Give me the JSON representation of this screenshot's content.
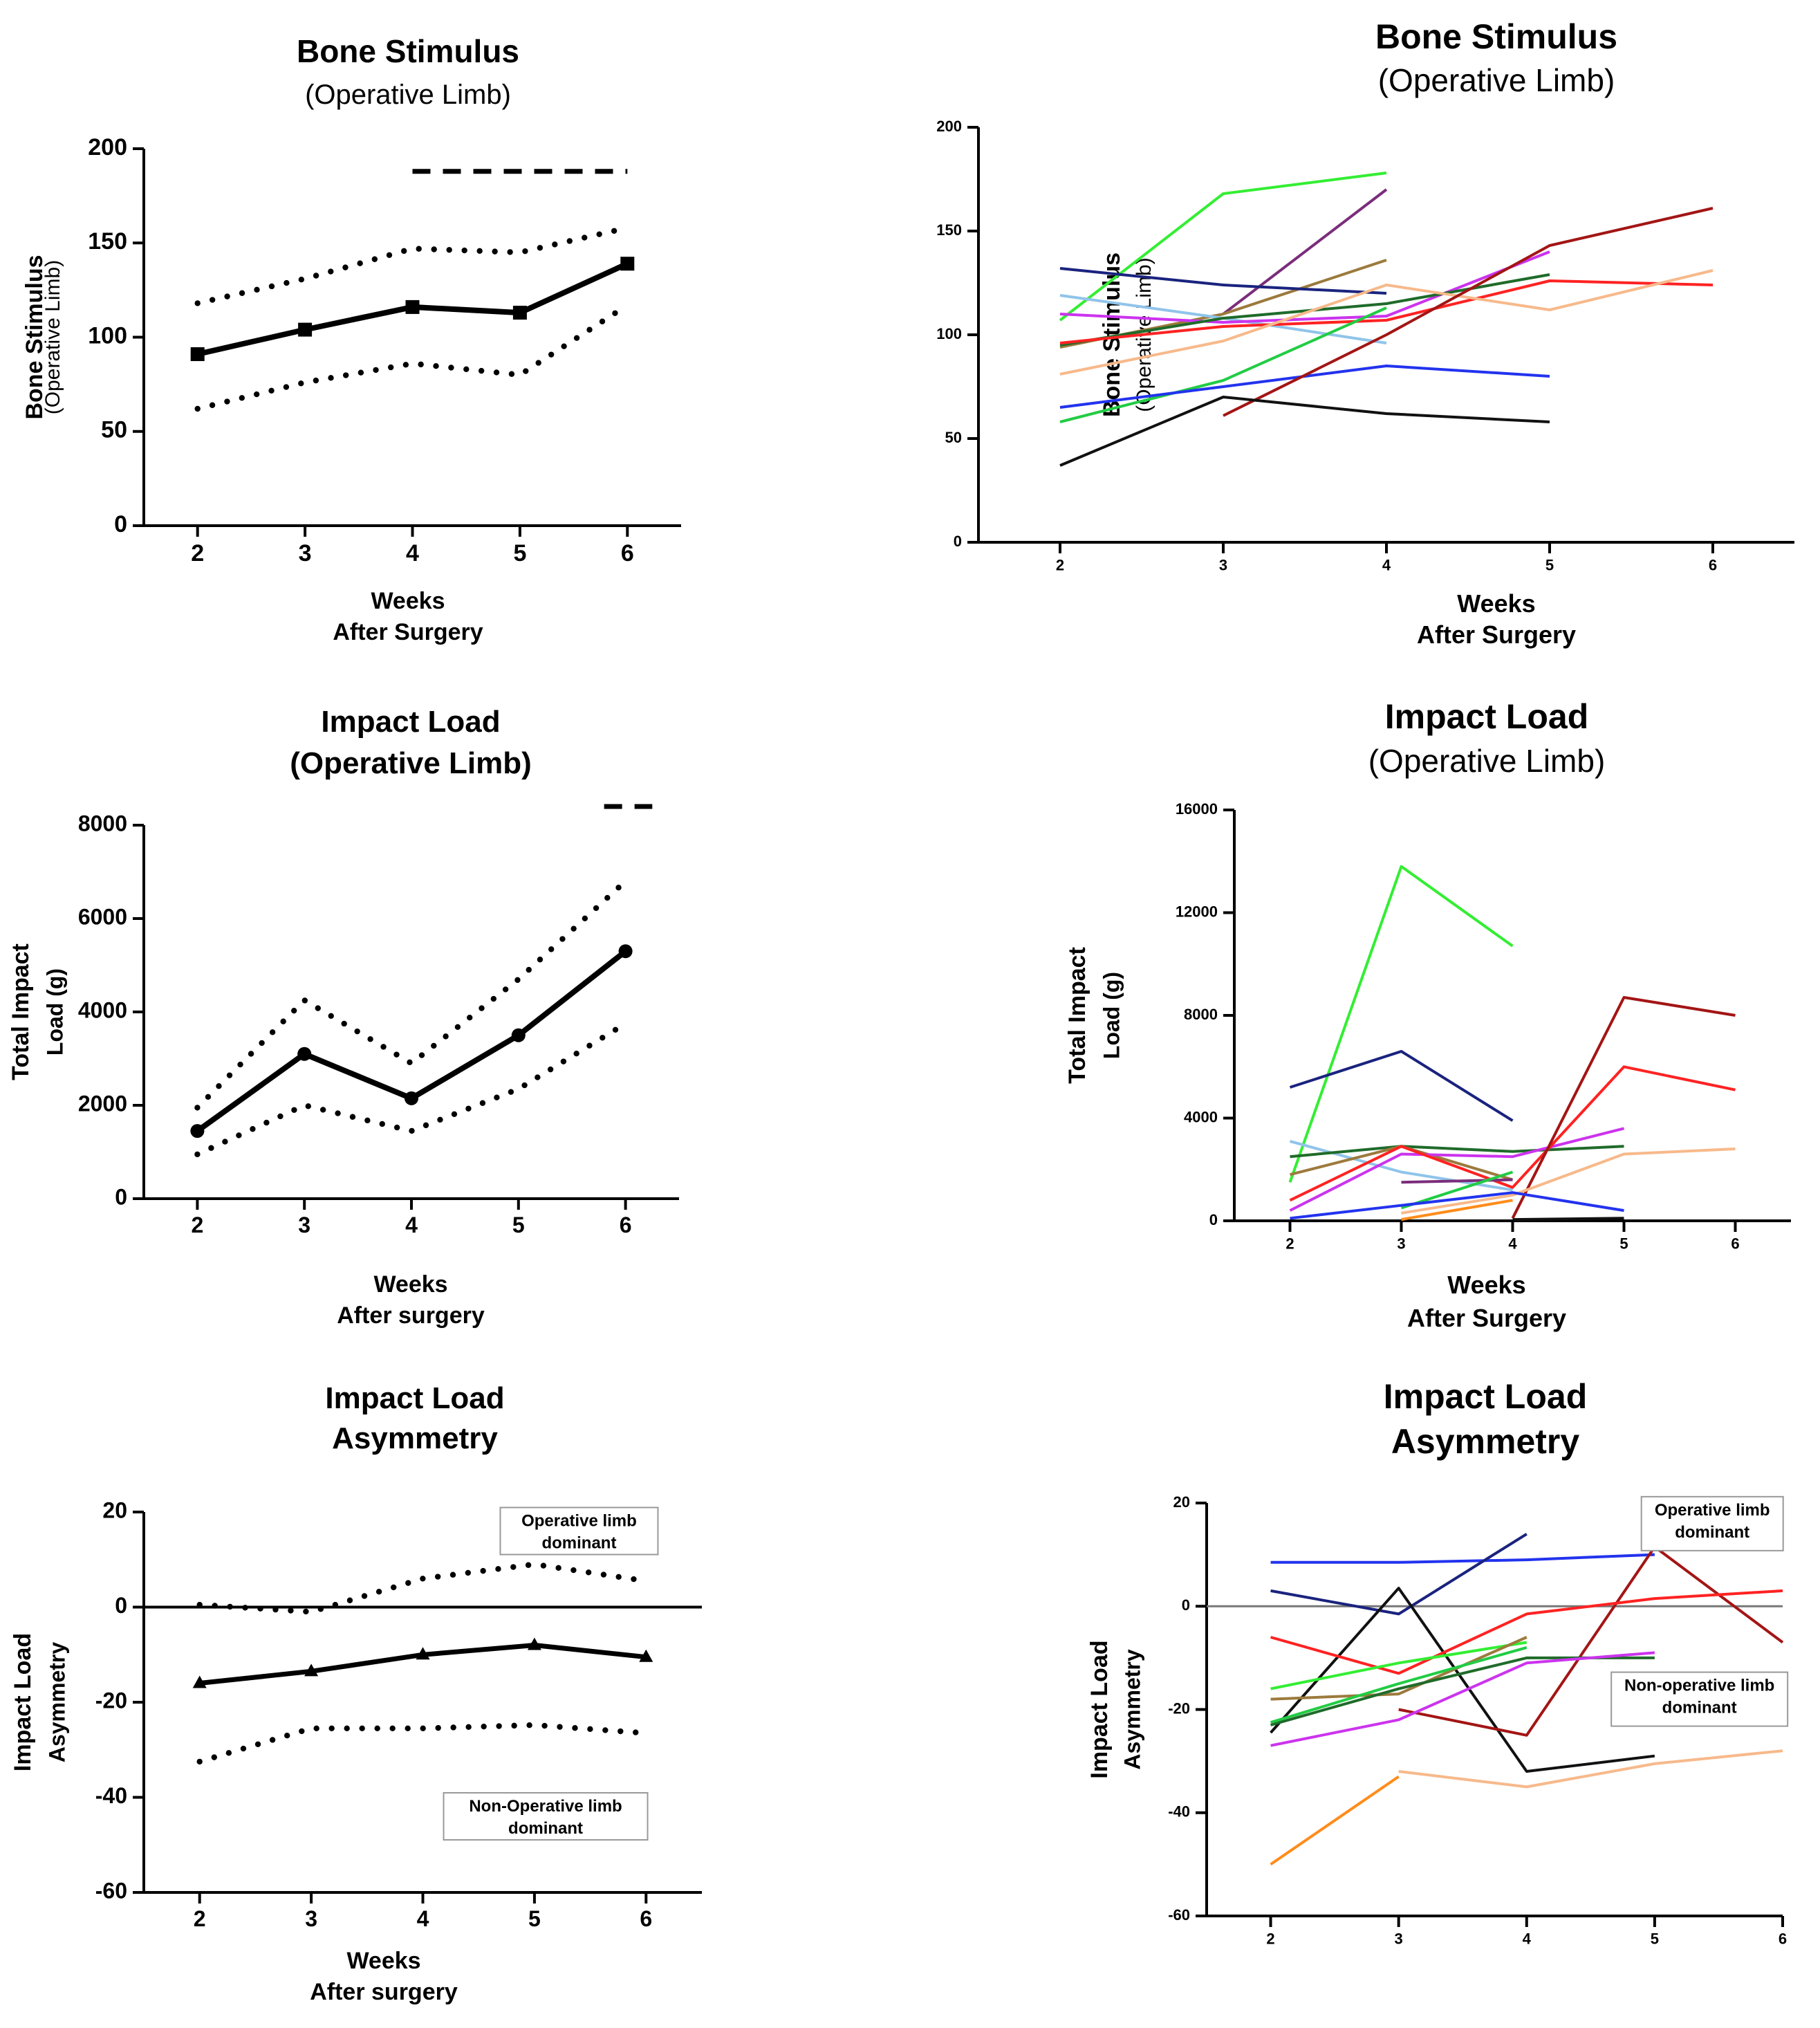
{
  "chart_data": [
    {
      "type": "line",
      "title": "Bone Stimulus",
      "subtitle": "(Operative Limb)",
      "ylabel": "Bone Stimulus",
      "ylabel_sub": "(Operative Limb)",
      "xlabel": "Weeks",
      "xlabel2": "After Surgery",
      "x": [
        2,
        3,
        4,
        5,
        6
      ],
      "xlim": [
        1.5,
        6.5
      ],
      "ylim": [
        0,
        200
      ],
      "yticks": [
        0,
        50,
        100,
        150,
        200
      ],
      "series": [
        {
          "name": "mean",
          "style": "solid",
          "marker": "square",
          "values": [
            91,
            104,
            116,
            113,
            139
          ]
        },
        {
          "name": "upper CI",
          "style": "dotted",
          "values": [
            118,
            131,
            147,
            145,
            158
          ]
        },
        {
          "name": "lower CI",
          "style": "dotted",
          "values": [
            62,
            76,
            86,
            80,
            117
          ]
        }
      ],
      "significance_bar": {
        "x_start": 4,
        "x_end": 6,
        "y": 188
      }
    },
    {
      "type": "line",
      "title": "Bone Stimulus",
      "subtitle": "(Operative Limb)",
      "ylabel": "Bone Stimulus",
      "ylabel_sub": "(Operative Limb)",
      "xlabel": "Weeks",
      "xlabel2": "After Surgery",
      "xlim": [
        1.5,
        6.5
      ],
      "ylim": [
        0,
        200
      ],
      "yticks": [
        0,
        50,
        100,
        150,
        200
      ],
      "series": [
        {
          "name": "light green",
          "color": "#33ee33",
          "x": [
            2,
            3,
            4
          ],
          "values": [
            107,
            168,
            178
          ]
        },
        {
          "name": "purple",
          "color": "#7b2d7b",
          "x": [
            3,
            4
          ],
          "values": [
            110,
            170
          ]
        },
        {
          "name": "tan",
          "color": "#9c7a3c",
          "x": [
            2,
            3,
            4
          ],
          "values": [
            94,
            110,
            136
          ]
        },
        {
          "name": "navy",
          "color": "#1a237e",
          "x": [
            2,
            3,
            4
          ],
          "values": [
            132,
            124,
            120
          ]
        },
        {
          "name": "light blue",
          "color": "#90c4ea",
          "x": [
            2,
            3,
            4
          ],
          "values": [
            119,
            108,
            96
          ]
        },
        {
          "name": "magenta",
          "color": "#cc33ee",
          "x": [
            2,
            3,
            4,
            5
          ],
          "values": [
            110,
            106,
            109,
            140
          ]
        },
        {
          "name": "dark green",
          "color": "#1f6b2a",
          "x": [
            2,
            3,
            4,
            5
          ],
          "values": [
            95,
            108,
            115,
            129
          ]
        },
        {
          "name": "red",
          "color": "#ff2222",
          "x": [
            2,
            3,
            4,
            5,
            6
          ],
          "values": [
            96,
            104,
            107,
            126,
            124
          ]
        },
        {
          "name": "peach",
          "color": "#f7b98b",
          "x": [
            2,
            3,
            4,
            5,
            6
          ],
          "values": [
            81,
            97,
            124,
            112,
            131
          ]
        },
        {
          "name": "green",
          "color": "#22cc44",
          "x": [
            2,
            3,
            4
          ],
          "values": [
            58,
            78,
            113
          ]
        },
        {
          "name": "blue",
          "color": "#2233ee",
          "x": [
            2,
            3,
            4,
            5
          ],
          "values": [
            65,
            75,
            85,
            80
          ]
        },
        {
          "name": "dark red",
          "color": "#a31515",
          "x": [
            3,
            4,
            5,
            6
          ],
          "values": [
            61,
            100,
            143,
            161
          ]
        },
        {
          "name": "black",
          "color": "#111111",
          "x": [
            2,
            3,
            4,
            5
          ],
          "values": [
            37,
            70,
            62,
            58
          ]
        }
      ]
    },
    {
      "type": "line",
      "title": "Impact Load",
      "subtitle": "(Operative Limb)",
      "ylabel": "Total Impact",
      "ylabel_sub": "Load (g)",
      "xlabel": "Weeks",
      "xlabel2": "After surgery",
      "x": [
        2,
        3,
        4,
        5,
        6
      ],
      "xlim": [
        1.5,
        6.5
      ],
      "ylim": [
        0,
        8000
      ],
      "yticks": [
        0,
        2000,
        4000,
        6000,
        8000
      ],
      "series": [
        {
          "name": "mean",
          "style": "solid",
          "marker": "circle",
          "values": [
            1450,
            3100,
            2150,
            3500,
            5300
          ]
        },
        {
          "name": "upper CI",
          "style": "dotted",
          "values": [
            1950,
            4250,
            2900,
            4700,
            6800
          ]
        },
        {
          "name": "lower CI",
          "style": "dotted",
          "values": [
            950,
            2000,
            1450,
            2350,
            3750
          ]
        }
      ],
      "significance_bar": {
        "x_start": 5.8,
        "x_end": 6.25,
        "y": 8400
      }
    },
    {
      "type": "line",
      "title": "Impact Load",
      "subtitle": "(Operative Limb)",
      "ylabel": "Total Impact",
      "ylabel_sub": "Load (g)",
      "xlabel": "Weeks",
      "xlabel2": "After Surgery",
      "xlim": [
        1.5,
        6.5
      ],
      "ylim": [
        0,
        16000
      ],
      "yticks": [
        0,
        4000,
        8000,
        12000,
        16000
      ],
      "series": [
        {
          "name": "light green",
          "color": "#33ee33",
          "x": [
            2,
            3,
            4
          ],
          "values": [
            1500,
            13800,
            10700
          ]
        },
        {
          "name": "navy",
          "color": "#1a237e",
          "x": [
            2,
            3,
            4
          ],
          "values": [
            5200,
            6600,
            3900
          ]
        },
        {
          "name": "light blue",
          "color": "#90c4ea",
          "x": [
            2,
            3,
            4
          ],
          "values": [
            3100,
            1900,
            1200
          ]
        },
        {
          "name": "dark green",
          "color": "#1f6b2a",
          "x": [
            2,
            3,
            4,
            5
          ],
          "values": [
            2500,
            2900,
            2700,
            2900
          ]
        },
        {
          "name": "tan",
          "color": "#9c7a3c",
          "x": [
            2,
            3,
            4
          ],
          "values": [
            1800,
            2900,
            1600
          ]
        },
        {
          "name": "magenta",
          "color": "#cc33ee",
          "x": [
            2,
            3,
            4,
            5
          ],
          "values": [
            400,
            2600,
            2500,
            3600
          ]
        },
        {
          "name": "red",
          "color": "#ff2222",
          "x": [
            2,
            3,
            4,
            5,
            6
          ],
          "values": [
            800,
            2900,
            1300,
            6000,
            5100
          ]
        },
        {
          "name": "dark red",
          "color": "#a31515",
          "x": [
            4,
            5,
            6
          ],
          "values": [
            100,
            8700,
            8000
          ]
        },
        {
          "name": "peach",
          "color": "#f7b98b",
          "x": [
            3,
            4,
            5,
            6
          ],
          "values": [
            300,
            1000,
            2600,
            2800
          ]
        },
        {
          "name": "purple",
          "color": "#7b2d7b",
          "x": [
            3,
            4
          ],
          "values": [
            1500,
            1600
          ]
        },
        {
          "name": "green",
          "color": "#22cc44",
          "x": [
            3,
            4
          ],
          "values": [
            500,
            1900
          ]
        },
        {
          "name": "blue",
          "color": "#2233ee",
          "x": [
            2,
            3,
            4,
            5
          ],
          "values": [
            100,
            600,
            1100,
            400
          ]
        },
        {
          "name": "orange",
          "color": "#ff8c1a",
          "x": [
            3,
            4
          ],
          "values": [
            50,
            800
          ]
        },
        {
          "name": "black",
          "color": "#111111",
          "x": [
            4,
            5
          ],
          "values": [
            50,
            100
          ]
        }
      ]
    },
    {
      "type": "line",
      "title": "Impact Load",
      "subtitle": "Asymmetry",
      "ylabel": "Impact Load",
      "ylabel_sub": "Asymmetry",
      "xlabel": "Weeks",
      "xlabel2": "After surgery",
      "x": [
        2,
        3,
        4,
        5,
        6
      ],
      "xlim": [
        1.5,
        6.5
      ],
      "ylim": [
        -60,
        20
      ],
      "yticks": [
        -60,
        -40,
        -20,
        0,
        20
      ],
      "zero_line": true,
      "series": [
        {
          "name": "mean",
          "style": "solid",
          "marker": "triangle",
          "values": [
            -16,
            -13.5,
            -10,
            -8,
            -10.5
          ]
        },
        {
          "name": "upper CI",
          "style": "dotted",
          "values": [
            0.5,
            -1,
            6,
            9,
            5.5
          ]
        },
        {
          "name": "lower CI",
          "style": "dotted",
          "values": [
            -32.5,
            -25.5,
            -25.5,
            -24.8,
            -26.5
          ]
        }
      ],
      "annotations": [
        {
          "text_lines": [
            "Operative limb",
            "dominant"
          ],
          "x": 5.4,
          "y": 16
        },
        {
          "text_lines": [
            "Non-Operative limb",
            "dominant"
          ],
          "x": 5.1,
          "y": -44
        }
      ]
    },
    {
      "type": "line",
      "title": "Impact Load",
      "subtitle": "Asymmetry",
      "ylabel": "Impact Load",
      "ylabel_sub": "Asymmetry",
      "xlabel": "",
      "xlabel2": "",
      "xlim": [
        1.5,
        6
      ],
      "ylim": [
        -60,
        20
      ],
      "yticks": [
        -60,
        -40,
        -20,
        0,
        20
      ],
      "zero_line": true,
      "series": [
        {
          "name": "blue",
          "color": "#2233ee",
          "x": [
            2,
            3,
            4,
            5
          ],
          "values": [
            8.5,
            8.5,
            9,
            10
          ]
        },
        {
          "name": "navy",
          "color": "#1a237e",
          "x": [
            2,
            3,
            4
          ],
          "values": [
            3,
            -1.5,
            14
          ]
        },
        {
          "name": "black",
          "color": "#111111",
          "x": [
            2,
            3,
            4,
            5
          ],
          "values": [
            -24.5,
            3.5,
            -32,
            -29
          ]
        },
        {
          "name": "dark red",
          "color": "#a31515",
          "x": [
            3,
            4,
            5,
            6
          ],
          "values": [
            -20,
            -25,
            11.5,
            -7
          ]
        },
        {
          "name": "red",
          "color": "#ff2222",
          "x": [
            2,
            3,
            4,
            5,
            6
          ],
          "values": [
            -6,
            -13,
            -1.5,
            1.5,
            3
          ]
        },
        {
          "name": "light green",
          "color": "#33ee33",
          "x": [
            2,
            3,
            4
          ],
          "values": [
            -16,
            -11,
            -7
          ]
        },
        {
          "name": "tan",
          "color": "#9c7a3c",
          "x": [
            2,
            3,
            4
          ],
          "values": [
            -18,
            -17,
            -6
          ]
        },
        {
          "name": "dark green",
          "color": "#1f6b2a",
          "x": [
            2,
            3,
            4,
            5
          ],
          "values": [
            -23,
            -16,
            -10,
            -10
          ]
        },
        {
          "name": "green",
          "color": "#22cc44",
          "x": [
            2,
            3,
            4
          ],
          "values": [
            -22.5,
            -15,
            -8
          ]
        },
        {
          "name": "magenta",
          "color": "#cc33ee",
          "x": [
            2,
            3,
            4,
            5
          ],
          "values": [
            -27,
            -22,
            -11,
            -9
          ]
        },
        {
          "name": "orange",
          "color": "#ff8c1a",
          "x": [
            2,
            3
          ],
          "values": [
            -50,
            -33
          ]
        },
        {
          "name": "peach",
          "color": "#f7b98b",
          "x": [
            3,
            4,
            5,
            6
          ],
          "values": [
            -32,
            -35,
            -30.5,
            -28
          ]
        }
      ],
      "annotations": [
        {
          "text_lines": [
            "Operative limb",
            "dominant"
          ],
          "x": 5.45,
          "y": 16
        },
        {
          "text_lines": [
            "Non-operative limb",
            "dominant"
          ],
          "x": 5.35,
          "y": -18
        }
      ]
    }
  ]
}
